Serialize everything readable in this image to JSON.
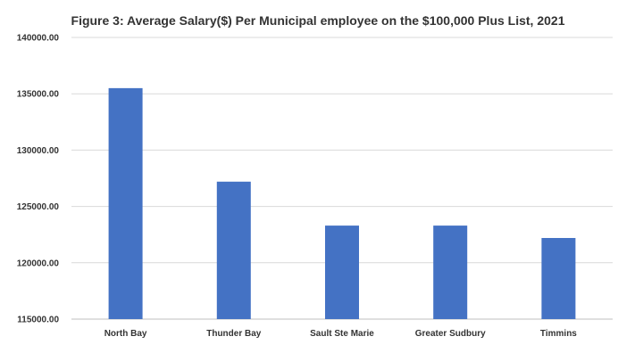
{
  "chart_data": {
    "type": "bar",
    "title": "Figure 3: Average Salary($) Per Municipal employee on the $100,000 Plus List, 2021",
    "xlabel": "",
    "ylabel": "",
    "categories": [
      "North Bay",
      "Thunder Bay",
      "Sault Ste Marie",
      "Greater Sudbury",
      "Timmins"
    ],
    "values": [
      135500,
      127200,
      123300,
      123300,
      122200
    ],
    "ylim": [
      115000,
      140000
    ],
    "yticks": [
      "115000.00",
      "120000.00",
      "125000.00",
      "130000.00",
      "135000.00",
      "140000.00"
    ],
    "grid": true,
    "legend": "none",
    "bar_color": "#4472c4"
  }
}
